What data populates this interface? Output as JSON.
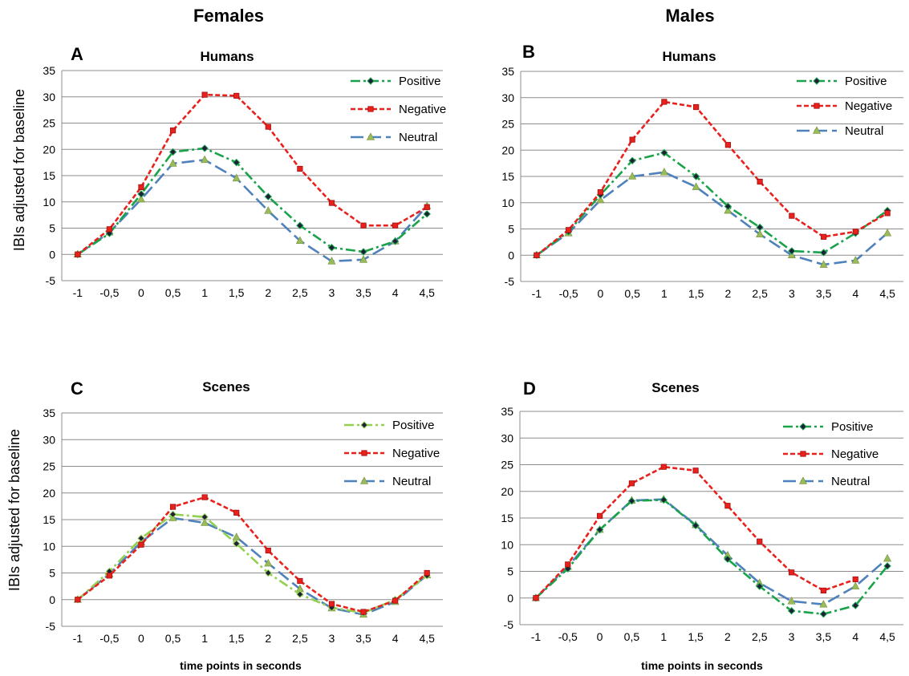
{
  "column_titles": [
    "Females",
    "Males"
  ],
  "y_axis_label": "IBIs  adjusted for baseline",
  "x_axis_label": "time points in seconds",
  "chart_data": [
    {
      "type": "line",
      "letter": "A",
      "title": "Humans",
      "categories": [
        "-1",
        "-0,5",
        "0",
        "0,5",
        "1",
        "1,5",
        "2",
        "2,5",
        "3",
        "3,5",
        "4",
        "4,5"
      ],
      "ylim": [
        -5,
        35
      ],
      "yticks": [
        -5,
        0,
        5,
        10,
        15,
        20,
        25,
        30,
        35
      ],
      "grid": true,
      "legend": "top-right",
      "series": [
        {
          "name": "Positive",
          "color": "#1aa34a",
          "values": [
            0,
            4,
            11.5,
            19.5,
            20.2,
            17.5,
            11,
            5.5,
            1.3,
            0.5,
            2.5,
            7.7
          ]
        },
        {
          "name": "Negative",
          "color": "#e8211d",
          "values": [
            0,
            4.8,
            12.8,
            23.6,
            30.4,
            30.2,
            24.3,
            16.3,
            9.8,
            5.5,
            5.5,
            9
          ]
        },
        {
          "name": "Neutral",
          "color": "#4f81bd",
          "values": [
            0,
            4.2,
            10.5,
            17.3,
            18,
            14.5,
            8.3,
            2.6,
            -1.3,
            -1,
            2.5,
            9.2
          ]
        }
      ]
    },
    {
      "type": "line",
      "letter": "B",
      "title": "Humans",
      "categories": [
        "-1",
        "-0,5",
        "0",
        "0,5",
        "1",
        "1,5",
        "2",
        "2,5",
        "3",
        "3,5",
        "4",
        "4,5"
      ],
      "ylim": [
        -5,
        35
      ],
      "yticks": [
        -5,
        0,
        5,
        10,
        15,
        20,
        25,
        30,
        35
      ],
      "grid": true,
      "legend": "top-right",
      "series": [
        {
          "name": "Positive",
          "color": "#1aa34a",
          "values": [
            0,
            4.5,
            11.5,
            18,
            19.5,
            15,
            9.3,
            5.3,
            0.8,
            0.5,
            4.2,
            8.5
          ]
        },
        {
          "name": "Negative",
          "color": "#e8211d",
          "values": [
            0,
            4.8,
            12,
            22,
            29.2,
            28.2,
            21,
            14,
            7.5,
            3.5,
            4.5,
            8
          ]
        },
        {
          "name": "Neutral",
          "color": "#4f81bd",
          "values": [
            0,
            4.2,
            10.5,
            15,
            15.8,
            13,
            8.5,
            4,
            0,
            -1.8,
            -1,
            4.2
          ]
        }
      ]
    },
    {
      "type": "line",
      "letter": "C",
      "title": "Scenes",
      "categories": [
        "-1",
        "-0,5",
        "0",
        "0,5",
        "1",
        "1,5",
        "2",
        "2,5",
        "3",
        "3,5",
        "4",
        "4,5"
      ],
      "ylim": [
        -5,
        35
      ],
      "yticks": [
        -5,
        0,
        5,
        10,
        15,
        20,
        25,
        30,
        35
      ],
      "grid": true,
      "legend": "top-right",
      "series": [
        {
          "name": "Positive",
          "color": "#92d050",
          "values": [
            0,
            5.3,
            11.5,
            16,
            15.5,
            10.5,
            5,
            1,
            -1.5,
            -2.5,
            0,
            4.5
          ]
        },
        {
          "name": "Negative",
          "color": "#e8211d",
          "values": [
            0,
            4.5,
            10.3,
            17.4,
            19.2,
            16.3,
            9.2,
            3.5,
            -0.8,
            -2.3,
            -0.2,
            5
          ]
        },
        {
          "name": "Neutral",
          "color": "#4f81bd",
          "values": [
            0,
            4.8,
            10.8,
            15.3,
            14.4,
            11.7,
            6.8,
            2,
            -1.6,
            -2.8,
            -0.4,
            4.6
          ]
        }
      ]
    },
    {
      "type": "line",
      "letter": "D",
      "title": "Scenes",
      "categories": [
        "-1",
        "-0,5",
        "0",
        "0,5",
        "1",
        "1,5",
        "2",
        "2,5",
        "3",
        "3,5",
        "4",
        "4,5"
      ],
      "ylim": [
        -5,
        35
      ],
      "yticks": [
        -5,
        0,
        5,
        10,
        15,
        20,
        25,
        30,
        35
      ],
      "grid": true,
      "legend": "top-right",
      "series": [
        {
          "name": "Positive",
          "color": "#1aa34a",
          "values": [
            0,
            5.5,
            12.8,
            18.2,
            18.4,
            13.6,
            7.3,
            2.2,
            -2.4,
            -3,
            -1.4,
            6
          ]
        },
        {
          "name": "Negative",
          "color": "#e8211d",
          "values": [
            0,
            6.3,
            15.4,
            21.5,
            24.6,
            23.9,
            17.3,
            10.6,
            4.8,
            1.4,
            3.5,
            null
          ]
        },
        {
          "name": "Neutral",
          "color": "#4f81bd",
          "values": [
            0,
            5.9,
            12.8,
            18.3,
            18.5,
            13.7,
            8,
            2.8,
            -0.6,
            -1.2,
            2.2,
            7.4
          ]
        }
      ]
    }
  ]
}
